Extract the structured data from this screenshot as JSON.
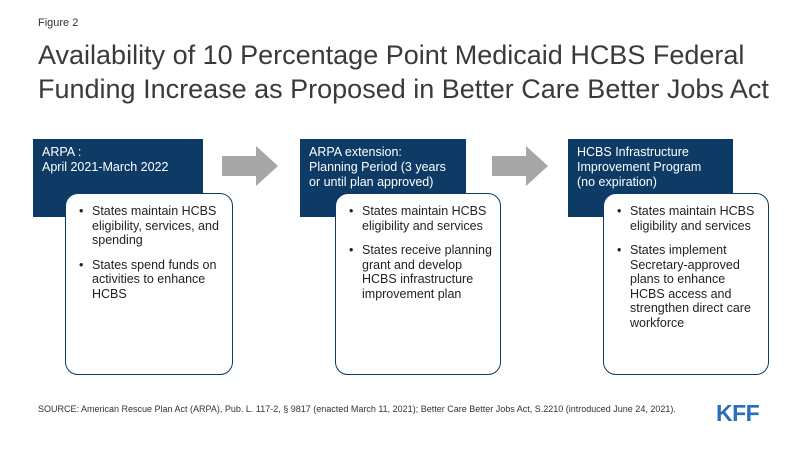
{
  "figure_label": "Figure 2",
  "title": "Availability of 10 Percentage Point Medicaid HCBS Federal Funding Increase as Proposed in Better Care Better Jobs Act",
  "stages": [
    {
      "header_lines": [
        "ARPA :",
        "April 2021-March 2022"
      ],
      "bullets": [
        "States maintain HCBS eligibility, services, and spending",
        "States spend funds on activities to enhance HCBS"
      ]
    },
    {
      "header_lines": [
        "ARPA extension:",
        "Planning Period (3 years",
        "or until plan approved)"
      ],
      "bullets": [
        "States maintain HCBS eligibility and services",
        "States receive planning grant and develop HCBS infrastructure improvement plan"
      ]
    },
    {
      "header_lines": [
        "HCBS Infrastructure",
        "Improvement Program",
        "(no expiration)"
      ],
      "bullets": [
        "States maintain HCBS eligibility and services",
        "States implement Secretary-approved plans to enhance HCBS access and strengthen direct care workforce"
      ]
    }
  ],
  "source": "SOURCE:  American Rescue Plan Act (ARPA), Pub. L. 117-2, § 9817 (enacted March 11, 2021); Better Care Better Jobs Act, S.2210 (introduced June 24, 2021).",
  "logo_text": "KFF",
  "colors": {
    "header_fill": "#0d3b66",
    "arrow_fill": "#a6a6a6",
    "logo": "#2a6ebb"
  }
}
